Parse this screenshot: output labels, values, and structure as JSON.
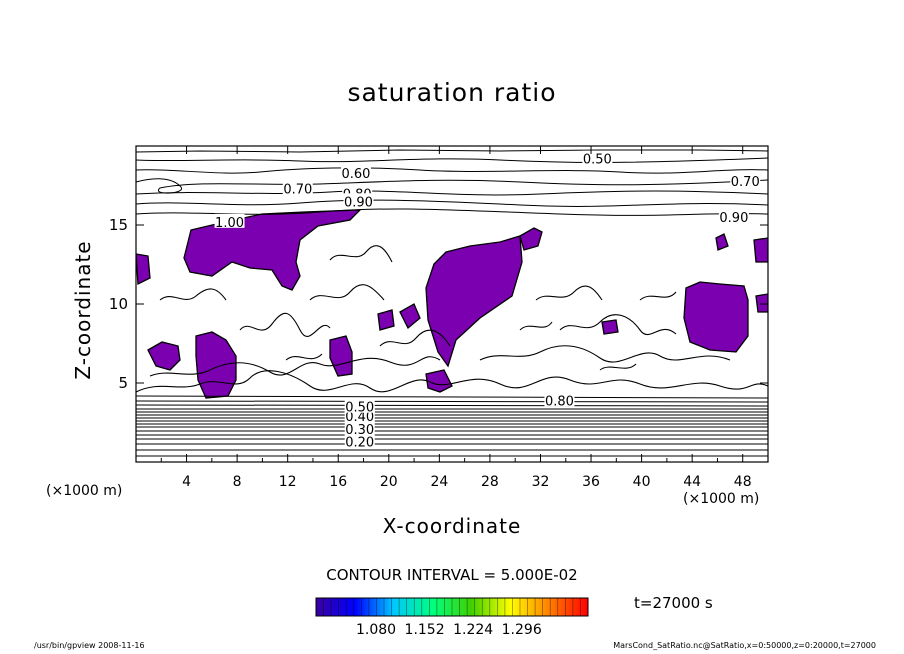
{
  "chart_data": {
    "type": "contour",
    "title": "saturation ratio",
    "xlabel": "X-coordinate",
    "ylabel": "Z-coordinate",
    "x_unit": "(×1000 m)",
    "x_unit_right": "(×1000 m)",
    "xlim": [
      0,
      50
    ],
    "ylim": [
      0,
      20
    ],
    "x_ticks": [
      "4",
      "8",
      "12",
      "16",
      "20",
      "24",
      "28",
      "32",
      "36",
      "40",
      "44",
      "48"
    ],
    "y_ticks": [
      "5",
      "10",
      "15"
    ],
    "contour_interval": "CONTOUR INTERVAL = 5.000E-02",
    "contour_labels": [
      {
        "text": "0.50",
        "x": 36.5,
        "z": 19.2
      },
      {
        "text": "0.60",
        "x": 17.4,
        "z": 18.3
      },
      {
        "text": "0.70",
        "x": 12.8,
        "z": 17.3
      },
      {
        "text": "0.80",
        "x": 17.5,
        "z": 17.0
      },
      {
        "text": "0.90",
        "x": 17.6,
        "z": 16.5
      },
      {
        "text": "0.70",
        "x": 48.2,
        "z": 17.8
      },
      {
        "text": "0.90",
        "x": 47.3,
        "z": 15.5
      },
      {
        "text": "1.00",
        "x": 7.4,
        "z": 15.2
      },
      {
        "text": "0.20",
        "x": 17.7,
        "z": 1.3
      },
      {
        "text": "0.30",
        "x": 17.7,
        "z": 2.1
      },
      {
        "text": "0.40",
        "x": 17.7,
        "z": 2.9
      },
      {
        "text": "0.50",
        "x": 17.7,
        "z": 3.5
      },
      {
        "text": "0.80",
        "x": 33.5,
        "z": 3.9
      }
    ],
    "filled_regions_color": "#7a00b0",
    "colorbar": {
      "labels": [
        "1.080",
        "1.152",
        "1.224",
        "1.296"
      ],
      "colors": [
        "#3a00a0",
        "#0000ff",
        "#00c8ff",
        "#00ff80",
        "#40d000",
        "#ffff00",
        "#ff8000",
        "#ff0000"
      ]
    },
    "time": "t=27000 s",
    "grid": false
  },
  "footer": {
    "left": "/usr/bin/gpview   2008-11-16",
    "right": "MarsCond_SatRatio.nc@SatRatio,x=0:50000,z=0:20000,t=27000"
  }
}
